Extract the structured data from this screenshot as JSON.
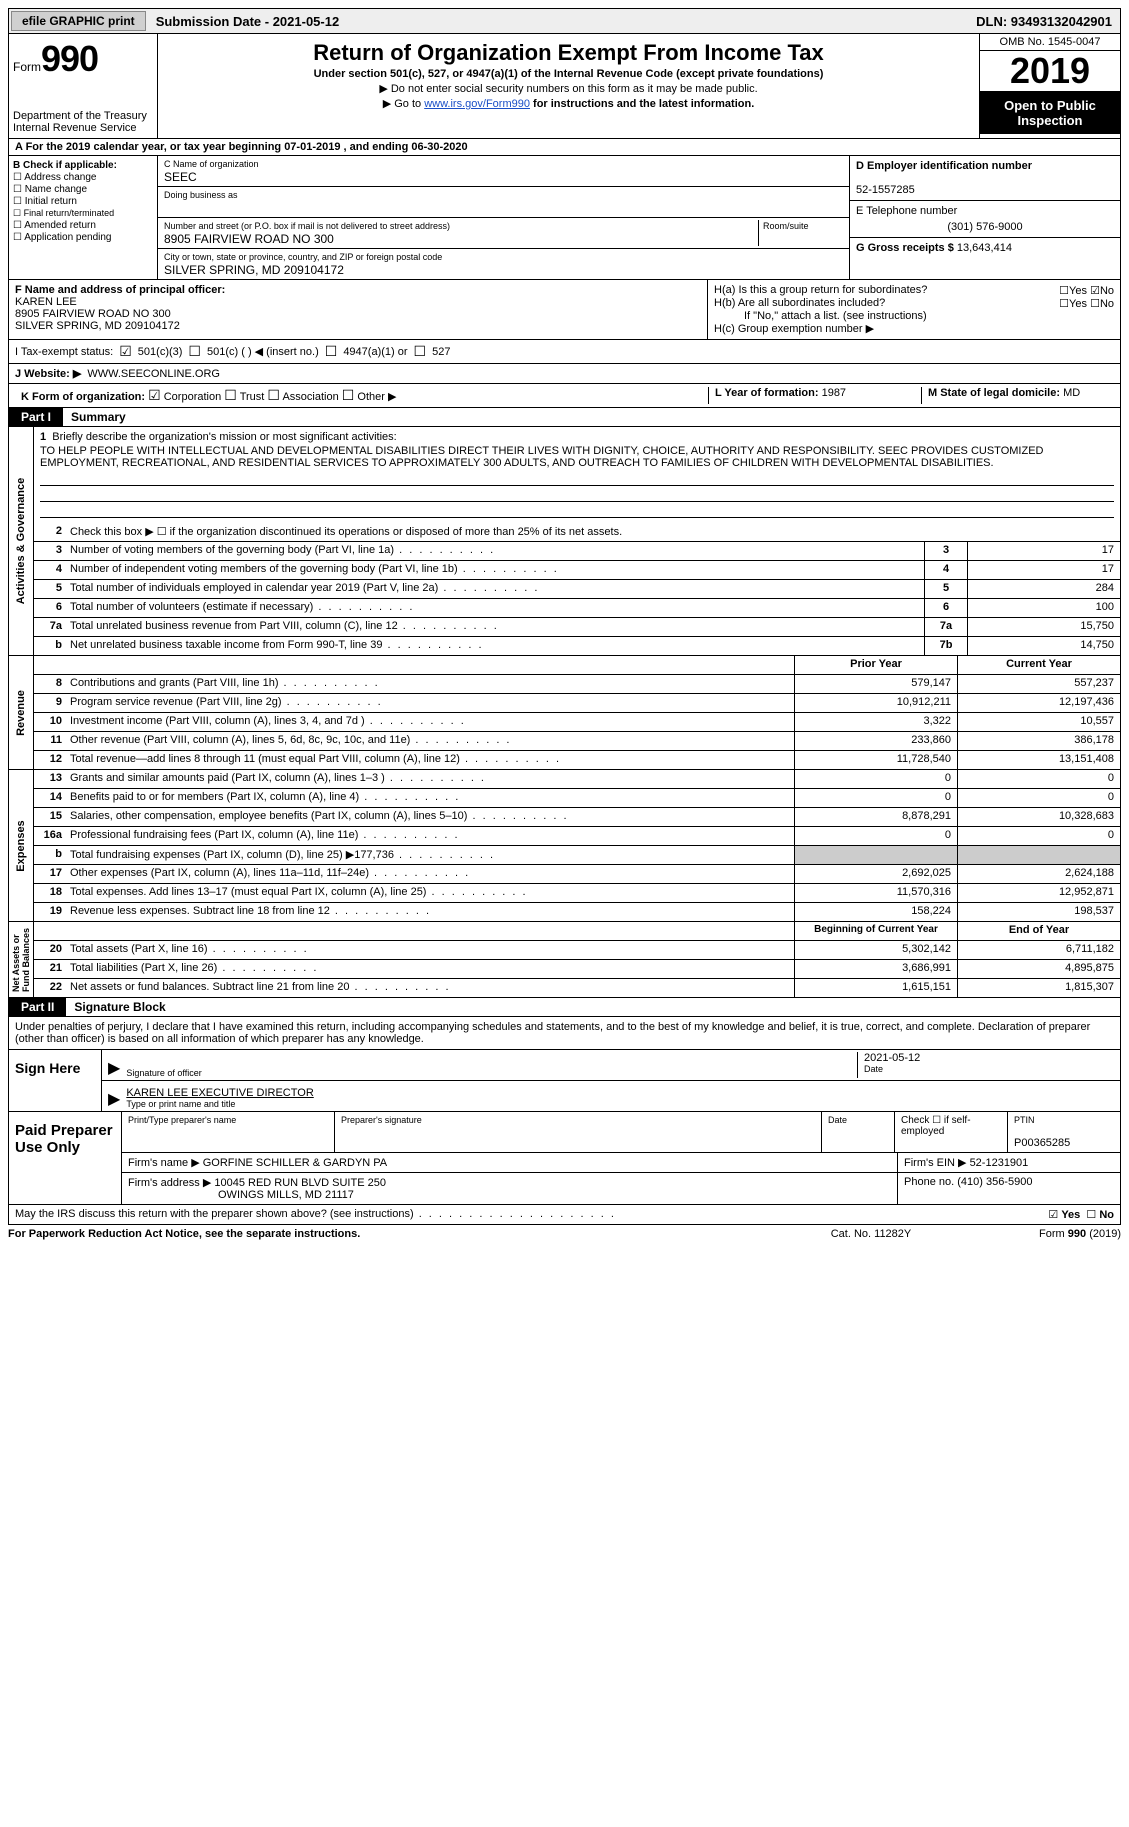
{
  "topbar": {
    "efile": "efile GRAPHIC print",
    "submission": "Submission Date - 2021-05-12",
    "dln": "DLN: 93493132042901"
  },
  "header": {
    "form_word": "Form",
    "form_num": "990",
    "dept": "Department of the Treasury\nInternal Revenue Service",
    "title": "Return of Organization Exempt From Income Tax",
    "subtitle": "Under section 501(c), 527, or 4947(a)(1) of the Internal Revenue Code (except private foundations)",
    "note1": "▶ Do not enter social security numbers on this form as it may be made public.",
    "note2_pre": "▶ Go to ",
    "note2_link": "www.irs.gov/Form990",
    "note2_post": " for instructions and the latest information.",
    "omb": "OMB No. 1545-0047",
    "year": "2019",
    "open": "Open to Public Inspection"
  },
  "period": "A For the 2019 calendar year, or tax year beginning 07-01-2019   , and ending 06-30-2020",
  "boxB": {
    "title": "B Check if applicable:",
    "opts": [
      "Address change",
      "Name change",
      "Initial return",
      "Final return/terminated",
      "Amended return",
      "Application pending"
    ]
  },
  "boxC": {
    "name_lbl": "C Name of organization",
    "name": "SEEC",
    "dba_lbl": "Doing business as",
    "dba": "",
    "addr_lbl": "Number and street (or P.O. box if mail is not delivered to street address)",
    "room_lbl": "Room/suite",
    "addr": "8905 FAIRVIEW ROAD NO 300",
    "city_lbl": "City or town, state or province, country, and ZIP or foreign postal code",
    "city": "SILVER SPRING, MD  209104172"
  },
  "boxD": {
    "lbl": "D Employer identification number",
    "val": "52-1557285"
  },
  "boxE": {
    "lbl": "E Telephone number",
    "val": "(301) 576-9000"
  },
  "boxG": {
    "lbl": "G Gross receipts $",
    "val": "13,643,414"
  },
  "boxF": {
    "lbl": "F Name and address of principal officer:",
    "name": "KAREN LEE",
    "addr1": "8905 FAIRVIEW ROAD NO 300",
    "addr2": "SILVER SPRING, MD  209104172"
  },
  "boxH": {
    "a": "H(a)  Is this a group return for subordinates?",
    "b": "H(b)  Are all subordinates included?",
    "b2": "If \"No,\" attach a list. (see instructions)",
    "c": "H(c)  Group exemption number ▶"
  },
  "boxI": {
    "lbl": "I   Tax-exempt status:",
    "o1": "501(c)(3)",
    "o2": "501(c) (  ) ◀ (insert no.)",
    "o3": "4947(a)(1) or",
    "o4": "527"
  },
  "boxJ": {
    "lbl": "J   Website: ▶",
    "val": "WWW.SEECONLINE.ORG"
  },
  "boxK": {
    "lbl": "K Form of organization:",
    "o1": "Corporation",
    "o2": "Trust",
    "o3": "Association",
    "o4": "Other ▶"
  },
  "boxL": {
    "lbl": "L Year of formation:",
    "val": "1987"
  },
  "boxM": {
    "lbl": "M State of legal domicile:",
    "val": "MD"
  },
  "part1": {
    "tag": "Part I",
    "title": "Summary"
  },
  "mission": {
    "n": "1",
    "lbl": "Briefly describe the organization's mission or most significant activities:",
    "text": "TO HELP PEOPLE WITH INTELLECTUAL AND DEVELOPMENTAL DISABILITIES DIRECT THEIR LIVES WITH DIGNITY, CHOICE, AUTHORITY AND RESPONSIBILITY. SEEC PROVIDES CUSTOMIZED EMPLOYMENT, RECREATIONAL, AND RESIDENTIAL SERVICES TO APPROXIMATELY 300 ADULTS, AND OUTREACH TO FAMILIES OF CHILDREN WITH DEVELOPMENTAL DISABILITIES."
  },
  "gov": {
    "l2": "Check this box ▶ ☐  if the organization discontinued its operations or disposed of more than 25% of its net assets.",
    "rows": [
      {
        "n": "3",
        "t": "Number of voting members of the governing body (Part VI, line 1a)",
        "cn": "3",
        "cv": "17"
      },
      {
        "n": "4",
        "t": "Number of independent voting members of the governing body (Part VI, line 1b)",
        "cn": "4",
        "cv": "17"
      },
      {
        "n": "5",
        "t": "Total number of individuals employed in calendar year 2019 (Part V, line 2a)",
        "cn": "5",
        "cv": "284"
      },
      {
        "n": "6",
        "t": "Total number of volunteers (estimate if necessary)",
        "cn": "6",
        "cv": "100"
      },
      {
        "n": "7a",
        "t": "Total unrelated business revenue from Part VIII, column (C), line 12",
        "cn": "7a",
        "cv": "15,750"
      },
      {
        "n": "b",
        "t": "Net unrelated business taxable income from Form 990-T, line 39",
        "cn": "7b",
        "cv": "14,750"
      }
    ]
  },
  "rev": {
    "hdr1": "Prior Year",
    "hdr2": "Current Year",
    "rows": [
      {
        "n": "8",
        "t": "Contributions and grants (Part VIII, line 1h)",
        "c1": "579,147",
        "c2": "557,237"
      },
      {
        "n": "9",
        "t": "Program service revenue (Part VIII, line 2g)",
        "c1": "10,912,211",
        "c2": "12,197,436"
      },
      {
        "n": "10",
        "t": "Investment income (Part VIII, column (A), lines 3, 4, and 7d )",
        "c1": "3,322",
        "c2": "10,557"
      },
      {
        "n": "11",
        "t": "Other revenue (Part VIII, column (A), lines 5, 6d, 8c, 9c, 10c, and 11e)",
        "c1": "233,860",
        "c2": "386,178"
      },
      {
        "n": "12",
        "t": "Total revenue—add lines 8 through 11 (must equal Part VIII, column (A), line 12)",
        "c1": "11,728,540",
        "c2": "13,151,408"
      }
    ]
  },
  "exp": {
    "rows": [
      {
        "n": "13",
        "t": "Grants and similar amounts paid (Part IX, column (A), lines 1–3 )",
        "c1": "0",
        "c2": "0"
      },
      {
        "n": "14",
        "t": "Benefits paid to or for members (Part IX, column (A), line 4)",
        "c1": "0",
        "c2": "0"
      },
      {
        "n": "15",
        "t": "Salaries, other compensation, employee benefits (Part IX, column (A), lines 5–10)",
        "c1": "8,878,291",
        "c2": "10,328,683"
      },
      {
        "n": "16a",
        "t": "Professional fundraising fees (Part IX, column (A), line 11e)",
        "c1": "0",
        "c2": "0"
      },
      {
        "n": "b",
        "t": "Total fundraising expenses (Part IX, column (D), line 25) ▶177,736",
        "c1": "",
        "c2": "",
        "shade": true
      },
      {
        "n": "17",
        "t": "Other expenses (Part IX, column (A), lines 11a–11d, 11f–24e)",
        "c1": "2,692,025",
        "c2": "2,624,188"
      },
      {
        "n": "18",
        "t": "Total expenses. Add lines 13–17 (must equal Part IX, column (A), line 25)",
        "c1": "11,570,316",
        "c2": "12,952,871"
      },
      {
        "n": "19",
        "t": "Revenue less expenses. Subtract line 18 from line 12",
        "c1": "158,224",
        "c2": "198,537"
      }
    ]
  },
  "net": {
    "hdr1": "Beginning of Current Year",
    "hdr2": "End of Year",
    "rows": [
      {
        "n": "20",
        "t": "Total assets (Part X, line 16)",
        "c1": "5,302,142",
        "c2": "6,711,182"
      },
      {
        "n": "21",
        "t": "Total liabilities (Part X, line 26)",
        "c1": "3,686,991",
        "c2": "4,895,875"
      },
      {
        "n": "22",
        "t": "Net assets or fund balances. Subtract line 21 from line 20",
        "c1": "1,615,151",
        "c2": "1,815,307"
      }
    ]
  },
  "part2": {
    "tag": "Part II",
    "title": "Signature Block"
  },
  "sig": {
    "intro": "Under penalties of perjury, I declare that I have examined this return, including accompanying schedules and statements, and to the best of my knowledge and belief, it is true, correct, and complete. Declaration of preparer (other than officer) is based on all information of which preparer has any knowledge.",
    "here": "Sign Here",
    "sig_lbl": "Signature of officer",
    "date_lbl": "Date",
    "date": "2021-05-12",
    "name": "KAREN LEE  EXECUTIVE DIRECTOR",
    "name_lbl": "Type or print name and title"
  },
  "prep": {
    "here": "Paid Preparer Use Only",
    "r1": {
      "a": "Print/Type preparer's name",
      "b": "Preparer's signature",
      "c": "Date",
      "d": "Check ☐ if self-employed",
      "e_lbl": "PTIN",
      "e": "P00365285"
    },
    "r2": {
      "a": "Firm's name    ▶",
      "b": "GORFINE SCHILLER & GARDYN PA",
      "c": "Firm's EIN ▶",
      "d": "52-1231901"
    },
    "r3": {
      "a": "Firm's address ▶",
      "b": "10045 RED RUN BLVD SUITE 250",
      "b2": "OWINGS MILLS, MD  21117",
      "c": "Phone no.",
      "d": "(410) 356-5900"
    }
  },
  "discuss": "May the IRS discuss this return with the preparer shown above? (see instructions)",
  "footer": {
    "l": "For Paperwork Reduction Act Notice, see the separate instructions.",
    "m": "Cat. No. 11282Y",
    "r": "Form 990 (2019)"
  },
  "yn": {
    "yes": "Yes",
    "no": "No"
  }
}
